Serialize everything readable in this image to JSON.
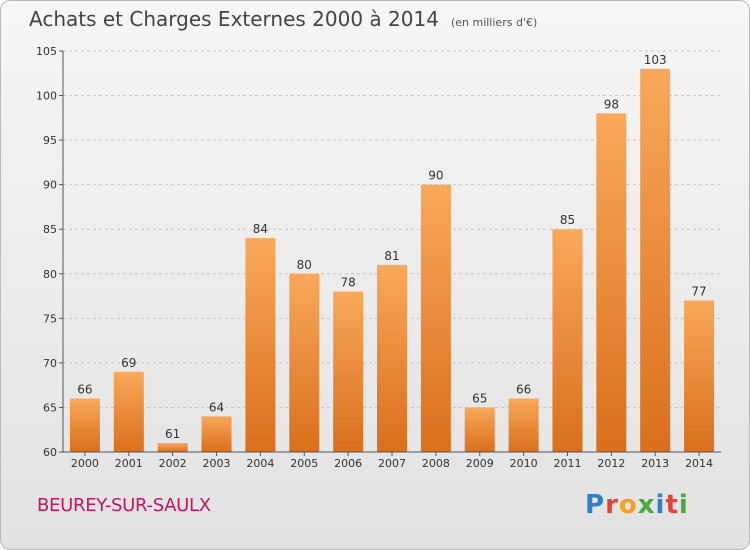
{
  "header": {
    "title": "Achats et Charges Externes 2000 à 2014",
    "unit": "(en milliers d'€)"
  },
  "footer": {
    "commune": "BEUREY-SUR-SAULX",
    "logo_letters": [
      "P",
      "r",
      "o",
      "x",
      "i",
      "t",
      "i"
    ],
    "logo_colors": [
      "#2f80c9",
      "#e6423a",
      "#f4a020",
      "#4aa93a",
      "#2f80c9",
      "#e6423a",
      "#4aa93a"
    ]
  },
  "colors": {
    "bar_light": "#f9a85a",
    "bar_dark": "#d96f1c",
    "grid": "#c8c8c8",
    "axis": "#555555",
    "commune": "#c2185b"
  },
  "chart_data": {
    "type": "bar",
    "categories": [
      "2000",
      "2001",
      "2002",
      "2003",
      "2004",
      "2005",
      "2006",
      "2007",
      "2008",
      "2009",
      "2010",
      "2011",
      "2012",
      "2013",
      "2014"
    ],
    "values": [
      66,
      69,
      61,
      64,
      84,
      80,
      78,
      81,
      90,
      65,
      66,
      85,
      98,
      103,
      77
    ],
    "data_labels": [
      "66",
      "69",
      "61",
      "64",
      "84",
      "80",
      "78",
      "81",
      "90",
      "65",
      "66",
      "85",
      "98",
      "103",
      "77"
    ],
    "title": "Achats et Charges Externes 2000 à 2014",
    "subtitle": "(en milliers d'€)",
    "xlabel": "",
    "ylabel": "",
    "ylim": [
      60,
      105
    ],
    "yticks": [
      60,
      65,
      70,
      75,
      80,
      85,
      90,
      95,
      100,
      105
    ],
    "ytick_labels": [
      "60",
      "65",
      "70",
      "75",
      "80",
      "85",
      "90",
      "95",
      "100",
      "105"
    ],
    "grid": true
  }
}
